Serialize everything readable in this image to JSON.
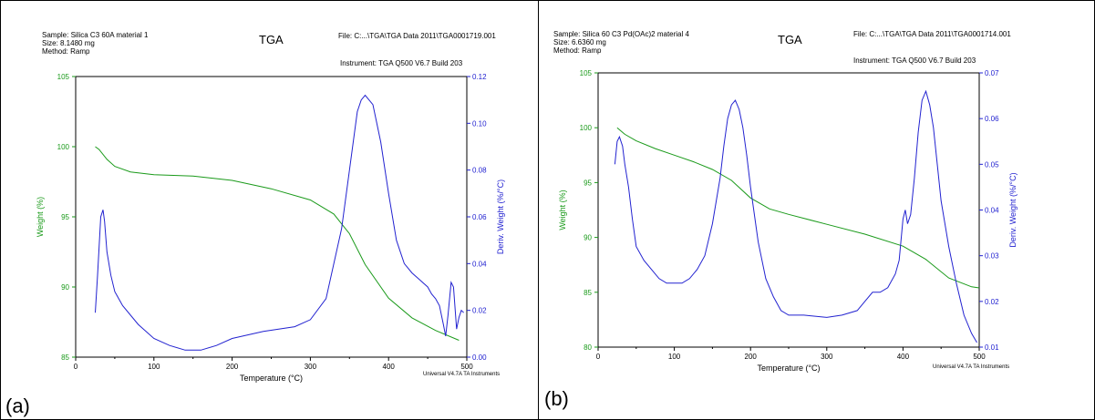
{
  "colors": {
    "weight": "#1a9a1a",
    "deriv": "#2222d0",
    "frame": "#000000"
  },
  "chart_data": [
    {
      "panel_label": "(a)",
      "type": "line",
      "title": "TGA",
      "sample": "Sample: Silica C3 60A   material 1",
      "size": "Size:  8.1480 mg",
      "method": "Method: Ramp",
      "file": "File: C:...\\TGA\\TGA Data 2011\\TGA0001719.001",
      "instrument": "Instrument: TGA Q500 V6.7 Build 203",
      "footer": "Universal V4.7A TA Instruments",
      "xlabel": "Temperature (°C)",
      "ylabel_left": "Weight (%)",
      "ylabel_right": "Deriv. Weight (%/°C)",
      "xlim": [
        0,
        500
      ],
      "ylim_left": [
        85,
        105
      ],
      "ylim_right": [
        0,
        0.12
      ],
      "xticks": [
        "0",
        "100",
        "200",
        "300",
        "400",
        "500"
      ],
      "yticks_left": [
        "85",
        "90",
        "95",
        "100",
        "105"
      ],
      "yticks_right": [
        "0.00",
        "0.02",
        "0.04",
        "0.06",
        "0.08",
        "0.10",
        "0.12"
      ],
      "series": [
        {
          "axis": "left",
          "x": [
            25,
            30,
            40,
            50,
            70,
            100,
            150,
            200,
            250,
            300,
            330,
            350,
            370,
            400,
            430,
            460,
            490
          ],
          "y": [
            100.0,
            99.8,
            99.1,
            98.6,
            98.2,
            98.0,
            97.9,
            97.6,
            97.0,
            96.2,
            95.2,
            93.8,
            91.6,
            89.2,
            87.8,
            86.9,
            86.2
          ]
        },
        {
          "axis": "right",
          "x": [
            25,
            28,
            32,
            35,
            37,
            40,
            45,
            50,
            60,
            80,
            100,
            120,
            140,
            160,
            180,
            200,
            240,
            280,
            300,
            320,
            340,
            350,
            360,
            365,
            370,
            380,
            390,
            400,
            410,
            420,
            430,
            440,
            450,
            455,
            460,
            465,
            470,
            473,
            476,
            480,
            483,
            487,
            490,
            493,
            496
          ],
          "y": [
            0.019,
            0.035,
            0.06,
            0.063,
            0.058,
            0.045,
            0.035,
            0.028,
            0.022,
            0.014,
            0.008,
            0.005,
            0.003,
            0.003,
            0.005,
            0.008,
            0.011,
            0.013,
            0.016,
            0.025,
            0.055,
            0.08,
            0.105,
            0.11,
            0.112,
            0.108,
            0.092,
            0.07,
            0.05,
            0.04,
            0.036,
            0.033,
            0.03,
            0.027,
            0.025,
            0.022,
            0.014,
            0.009,
            0.018,
            0.032,
            0.03,
            0.012,
            0.017,
            0.02,
            0.019
          ]
        }
      ]
    },
    {
      "panel_label": "(b)",
      "type": "line",
      "title": "TGA",
      "sample": "Sample: Silica 60 C3 Pd(OAc)2 material 4",
      "size": "Size:  6.6360 mg",
      "method": "Method: Ramp",
      "file": "File: C:...\\TGA\\TGA Data 2011\\TGA0001714.001",
      "instrument": "Instrument: TGA Q500 V6.7 Build 203",
      "footer": "Universal V4.7A TA Instruments",
      "xlabel": "Temperature (°C)",
      "ylabel_left": "Weight (%)",
      "ylabel_right": "Deriv. Weight (%/°C)",
      "xlim": [
        0,
        500
      ],
      "ylim_left": [
        80,
        105
      ],
      "ylim_right": [
        0.01,
        0.07
      ],
      "xticks": [
        "0",
        "100",
        "200",
        "300",
        "400",
        "500"
      ],
      "yticks_left": [
        "80",
        "85",
        "90",
        "95",
        "100",
        "105"
      ],
      "yticks_right": [
        "0.01",
        "0.02",
        "0.03",
        "0.04",
        "0.05",
        "0.06",
        "0.07"
      ],
      "series": [
        {
          "axis": "left",
          "x": [
            25,
            35,
            50,
            75,
            100,
            125,
            150,
            175,
            200,
            225,
            250,
            300,
            350,
            400,
            430,
            460,
            490,
            500
          ],
          "y": [
            100.0,
            99.4,
            98.8,
            98.1,
            97.5,
            96.9,
            96.2,
            95.2,
            93.6,
            92.6,
            92.1,
            91.2,
            90.3,
            89.2,
            88.0,
            86.3,
            85.5,
            85.4
          ]
        },
        {
          "axis": "right",
          "x": [
            22,
            25,
            28,
            32,
            35,
            40,
            45,
            50,
            60,
            70,
            80,
            90,
            100,
            110,
            120,
            130,
            140,
            150,
            160,
            165,
            170,
            175,
            180,
            185,
            190,
            195,
            200,
            210,
            220,
            230,
            240,
            250,
            270,
            300,
            320,
            340,
            350,
            360,
            370,
            380,
            390,
            395,
            400,
            403,
            406,
            410,
            415,
            420,
            425,
            430,
            435,
            440,
            445,
            450,
            460,
            470,
            480,
            490,
            497
          ],
          "y": [
            0.05,
            0.055,
            0.056,
            0.054,
            0.05,
            0.045,
            0.038,
            0.032,
            0.029,
            0.027,
            0.025,
            0.024,
            0.024,
            0.024,
            0.025,
            0.027,
            0.03,
            0.037,
            0.047,
            0.054,
            0.06,
            0.063,
            0.064,
            0.062,
            0.058,
            0.052,
            0.045,
            0.033,
            0.025,
            0.021,
            0.018,
            0.017,
            0.017,
            0.0165,
            0.017,
            0.018,
            0.02,
            0.022,
            0.022,
            0.023,
            0.026,
            0.029,
            0.038,
            0.04,
            0.037,
            0.039,
            0.047,
            0.057,
            0.064,
            0.066,
            0.063,
            0.058,
            0.05,
            0.042,
            0.032,
            0.024,
            0.017,
            0.013,
            0.011
          ]
        }
      ]
    }
  ]
}
